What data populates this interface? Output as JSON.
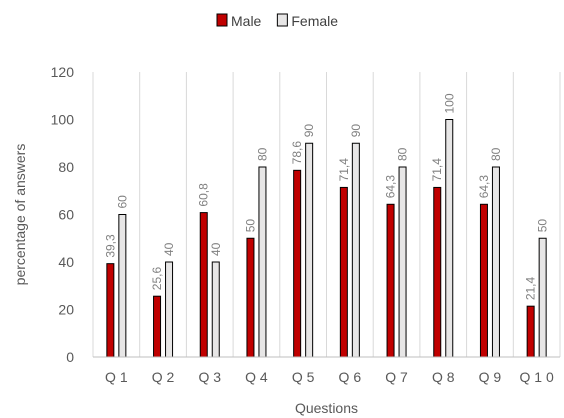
{
  "chart_data": {
    "type": "bar",
    "categories": [
      "Q 1",
      "Q 2",
      "Q 3",
      "Q 4",
      "Q 5",
      "Q 6",
      "Q 7",
      "Q 8",
      "Q 9",
      "Q 1 0"
    ],
    "series": [
      {
        "name": "Male",
        "values": [
          39.3,
          25.6,
          60.8,
          50,
          78.6,
          71.4,
          64.3,
          71.4,
          64.3,
          21.4
        ],
        "labels": [
          "39,3",
          "25,6",
          "60,8",
          "50",
          "78,6",
          "71,4",
          "64,3",
          "71,4",
          "64,3",
          "21,4"
        ],
        "fill": "#c00000",
        "stroke": "#000000"
      },
      {
        "name": "Female",
        "values": [
          60,
          40,
          40,
          80,
          90,
          90,
          80,
          100,
          80,
          50
        ],
        "labels": [
          "60",
          "40",
          "40",
          "80",
          "90",
          "90",
          "80",
          "100",
          "80",
          "50"
        ],
        "fill": "#e7e6e6",
        "stroke": "#000000"
      }
    ],
    "xlabel": "Questions",
    "ylabel": "percentage of answers",
    "ylim": [
      0,
      120
    ],
    "yticks": [
      "0",
      "20",
      "40",
      "60",
      "80",
      "100",
      "120"
    ],
    "grid": "vertical",
    "legend_position": "top"
  }
}
